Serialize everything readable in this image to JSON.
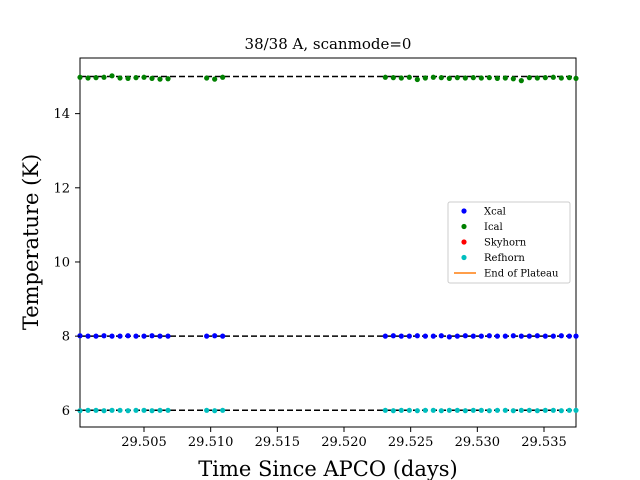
{
  "chart_data": {
    "type": "scatter",
    "title": "38/38 A, scanmode=0",
    "xlabel": "Time Since APCO (days)",
    "ylabel": "Temperature (K)",
    "xlim": [
      29.5002,
      29.5374
    ],
    "ylim": [
      5.55,
      15.5
    ],
    "xticks": [
      29.505,
      29.51,
      29.515,
      29.52,
      29.525,
      29.53,
      29.535
    ],
    "xtick_labels": [
      "29.505",
      "29.510",
      "29.515",
      "29.520",
      "29.525",
      "29.530",
      "29.535"
    ],
    "yticks": [
      6,
      8,
      10,
      12,
      14
    ],
    "ytick_labels": [
      "6",
      "8",
      "10",
      "12",
      "14"
    ],
    "grid": false,
    "legend_position": "center-right",
    "reference_lines": [
      {
        "y": 15.0,
        "style": "dashed",
        "color": "#000000"
      },
      {
        "y": 8.0,
        "style": "dashed",
        "color": "#000000"
      },
      {
        "y": 6.0,
        "style": "dashed",
        "color": "#000000"
      }
    ],
    "x": [
      29.5002,
      29.5008,
      29.5014,
      29.502,
      29.5026,
      29.5032,
      29.5038,
      29.5044,
      29.505,
      29.5056,
      29.5062,
      29.5068,
      29.5097,
      29.5103,
      29.5109,
      29.5231,
      29.5237,
      29.5243,
      29.5249,
      29.5255,
      29.5261,
      29.5267,
      29.5273,
      29.5279,
      29.5285,
      29.5291,
      29.5297,
      29.5303,
      29.5309,
      29.5315,
      29.5321,
      29.5327,
      29.5333,
      29.5339,
      29.5345,
      29.5351,
      29.5357,
      29.5363,
      29.5369,
      29.5374
    ],
    "series": [
      {
        "name": "Xcal",
        "color": "#0000ff",
        "values": [
          8.01,
          8.0,
          8.0,
          8.01,
          8.0,
          8.0,
          8.01,
          8.0,
          8.0,
          8.01,
          8.0,
          8.0,
          8.0,
          8.01,
          8.0,
          8.0,
          8.01,
          8.0,
          8.0,
          8.01,
          8.0,
          8.0,
          8.01,
          7.98,
          8.0,
          8.01,
          8.0,
          8.0,
          8.01,
          8.0,
          8.0,
          8.01,
          8.0,
          8.0,
          8.01,
          8.0,
          8.0,
          8.01,
          8.0,
          8.0
        ]
      },
      {
        "name": "Ical",
        "color": "#008000",
        "values": [
          14.98,
          14.96,
          14.97,
          14.98,
          15.02,
          14.96,
          14.95,
          14.97,
          14.98,
          14.95,
          14.93,
          14.94,
          14.96,
          14.93,
          14.98,
          14.98,
          14.97,
          14.96,
          14.98,
          14.92,
          14.96,
          14.98,
          14.97,
          14.95,
          14.97,
          14.96,
          14.97,
          14.96,
          14.97,
          14.95,
          14.96,
          14.94,
          14.89,
          14.97,
          14.96,
          14.97,
          14.98,
          14.96,
          14.97,
          14.95
        ]
      },
      {
        "name": "Skyhorn",
        "color": "#ff0000",
        "values": []
      },
      {
        "name": "Refhorn",
        "color": "#00bfbf",
        "values": [
          5.99,
          6.0,
          6.0,
          5.99,
          6.0,
          6.0,
          5.99,
          6.0,
          6.0,
          5.99,
          6.0,
          6.0,
          6.0,
          5.99,
          6.0,
          6.0,
          5.99,
          6.0,
          6.0,
          5.99,
          6.0,
          6.0,
          5.99,
          6.0,
          6.0,
          5.99,
          6.0,
          6.0,
          5.99,
          6.0,
          6.0,
          5.99,
          6.0,
          6.0,
          5.99,
          6.0,
          6.0,
          5.99,
          6.0,
          6.0
        ]
      }
    ],
    "legend": [
      {
        "label": "Xcal",
        "marker": "dot",
        "color": "#0000ff"
      },
      {
        "label": "Ical",
        "marker": "dot",
        "color": "#008000"
      },
      {
        "label": "Skyhorn",
        "marker": "dot",
        "color": "#ff0000"
      },
      {
        "label": "Refhorn",
        "marker": "dot",
        "color": "#00bfbf"
      },
      {
        "label": "End of Plateau",
        "marker": "line",
        "color": "#ff7f0e"
      }
    ]
  }
}
